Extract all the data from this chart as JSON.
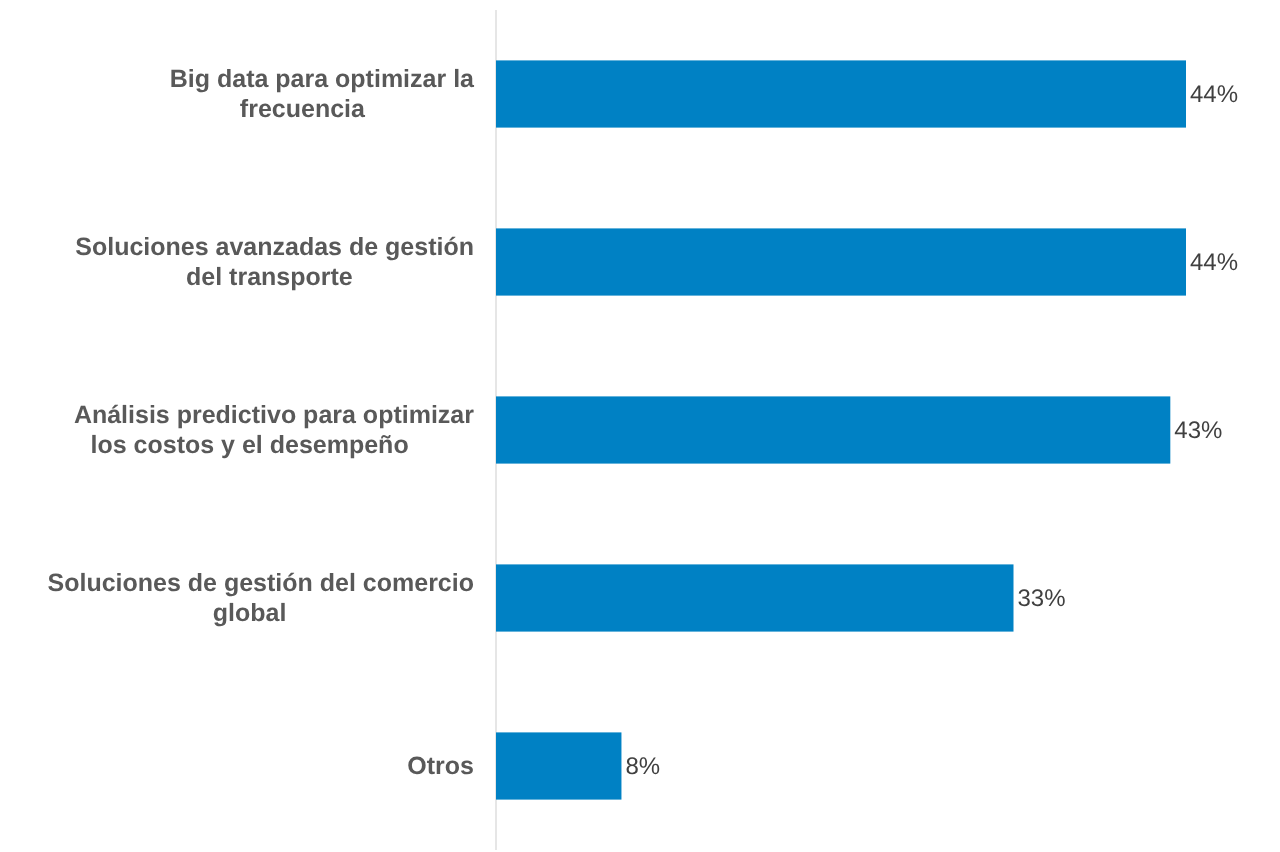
{
  "chart_data": {
    "type": "bar",
    "orientation": "horizontal",
    "categories": [
      "Big data para optimizar la frecuencia",
      "Soluciones avanzadas de gestión del transporte",
      "Análisis predictivo para optimizar los costos y el desempeño",
      "Soluciones de gestión del comercio global",
      "Otros"
    ],
    "values": [
      44,
      44,
      43,
      33,
      8
    ],
    "value_labels": [
      "44%",
      "44%",
      "43%",
      "33%",
      "8%"
    ],
    "color": "#0081c4"
  }
}
